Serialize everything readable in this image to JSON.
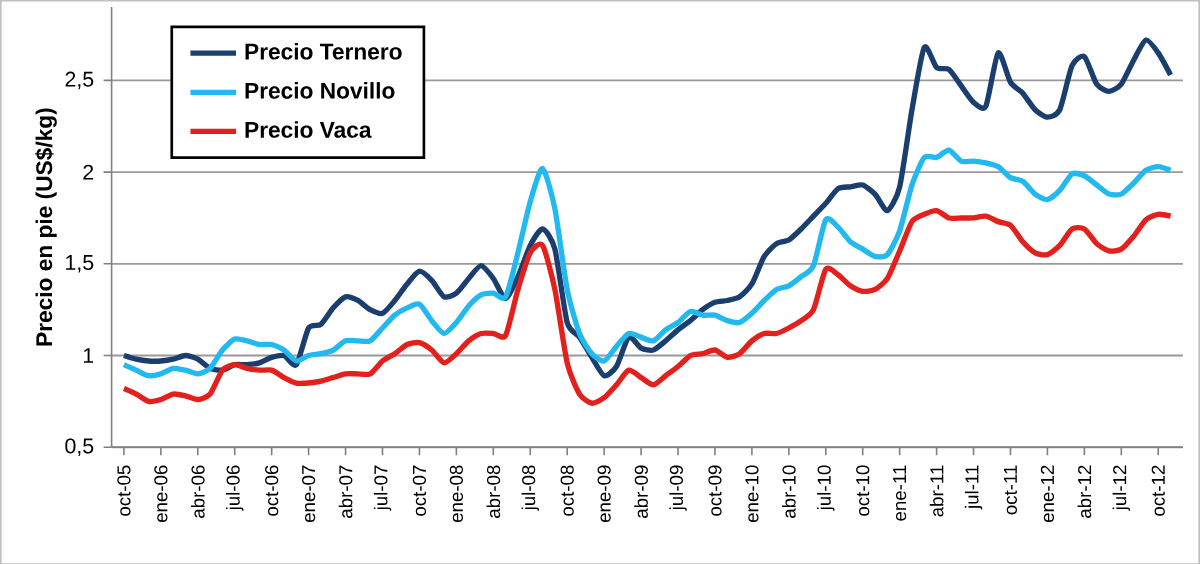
{
  "chart_data": {
    "type": "line",
    "ylabel": "Precio en pie (US$/kg)",
    "categories": [
      "oct-05",
      null,
      null,
      "ene-06",
      null,
      null,
      "abr-06",
      null,
      null,
      "jul-06",
      null,
      null,
      "oct-06",
      null,
      null,
      "ene-07",
      null,
      null,
      "abr-07",
      null,
      null,
      "jul-07",
      null,
      null,
      "oct-07",
      null,
      null,
      "ene-08",
      null,
      null,
      "abr-08",
      null,
      null,
      "jul-08",
      null,
      null,
      "oct-08",
      null,
      null,
      "ene-09",
      null,
      null,
      "abr-09",
      null,
      null,
      "jul-09",
      null,
      null,
      "oct-09",
      null,
      null,
      "ene-10",
      null,
      null,
      "abr-10",
      null,
      null,
      "jul-10",
      null,
      null,
      "oct-10",
      null,
      null,
      "ene-11",
      null,
      null,
      "abr-11",
      null,
      null,
      "jul-11",
      null,
      null,
      "oct-11",
      null,
      null,
      "ene-12",
      null,
      null,
      "abr-12",
      null,
      null,
      "jul-12",
      null,
      null,
      "oct-12",
      null
    ],
    "series": [
      {
        "name": "Precio Ternero",
        "color": "#1a3f6e",
        "values": [
          1.0,
          0.98,
          0.97,
          0.97,
          0.98,
          1.0,
          0.98,
          0.93,
          0.92,
          0.95,
          0.95,
          0.96,
          0.99,
          1.0,
          0.95,
          1.15,
          1.17,
          1.26,
          1.32,
          1.3,
          1.25,
          1.23,
          1.3,
          1.39,
          1.46,
          1.41,
          1.32,
          1.34,
          1.42,
          1.49,
          1.42,
          1.31,
          1.43,
          1.6,
          1.69,
          1.58,
          1.18,
          1.1,
          0.99,
          0.89,
          0.94,
          1.1,
          1.04,
          1.03,
          1.08,
          1.14,
          1.19,
          1.25,
          1.29,
          1.3,
          1.32,
          1.39,
          1.54,
          1.61,
          1.63,
          1.69,
          1.76,
          1.83,
          1.91,
          1.92,
          1.93,
          1.88,
          1.79,
          1.92,
          2.34,
          2.68,
          2.57,
          2.56,
          2.47,
          2.38,
          2.36,
          2.65,
          2.49,
          2.43,
          2.34,
          2.3,
          2.34,
          2.58,
          2.63,
          2.48,
          2.44,
          2.48,
          2.61,
          2.72,
          2.65,
          2.53
        ]
      },
      {
        "name": "Precio Novillo",
        "color": "#22b8f0",
        "values": [
          0.95,
          0.92,
          0.89,
          0.9,
          0.93,
          0.92,
          0.9,
          0.93,
          1.03,
          1.09,
          1.08,
          1.06,
          1.06,
          1.03,
          0.97,
          1.0,
          1.01,
          1.03,
          1.08,
          1.08,
          1.08,
          1.15,
          1.22,
          1.26,
          1.28,
          1.19,
          1.12,
          1.18,
          1.27,
          1.33,
          1.34,
          1.32,
          1.56,
          1.84,
          2.02,
          1.8,
          1.36,
          1.12,
          1.01,
          0.97,
          1.05,
          1.12,
          1.1,
          1.08,
          1.14,
          1.18,
          1.24,
          1.22,
          1.22,
          1.19,
          1.18,
          1.23,
          1.3,
          1.36,
          1.38,
          1.43,
          1.49,
          1.74,
          1.7,
          1.62,
          1.58,
          1.54,
          1.55,
          1.68,
          1.93,
          2.08,
          2.08,
          2.12,
          2.06,
          2.06,
          2.05,
          2.03,
          1.97,
          1.95,
          1.88,
          1.85,
          1.9,
          1.99,
          1.98,
          1.93,
          1.88,
          1.88,
          1.94,
          2.01,
          2.03,
          2.01
        ]
      },
      {
        "name": "Precio Vaca",
        "color": "#e3201b",
        "values": [
          0.82,
          0.79,
          0.75,
          0.76,
          0.79,
          0.78,
          0.76,
          0.79,
          0.92,
          0.95,
          0.93,
          0.92,
          0.92,
          0.88,
          0.85,
          0.85,
          0.86,
          0.88,
          0.9,
          0.9,
          0.9,
          0.97,
          1.01,
          1.06,
          1.07,
          1.03,
          0.96,
          1.01,
          1.08,
          1.12,
          1.12,
          1.11,
          1.36,
          1.56,
          1.6,
          1.36,
          0.96,
          0.79,
          0.74,
          0.77,
          0.84,
          0.92,
          0.88,
          0.84,
          0.89,
          0.94,
          1.0,
          1.01,
          1.03,
          0.99,
          1.01,
          1.08,
          1.12,
          1.12,
          1.15,
          1.19,
          1.25,
          1.47,
          1.44,
          1.38,
          1.35,
          1.36,
          1.42,
          1.57,
          1.73,
          1.77,
          1.79,
          1.75,
          1.75,
          1.75,
          1.76,
          1.73,
          1.71,
          1.62,
          1.56,
          1.55,
          1.6,
          1.69,
          1.69,
          1.61,
          1.57,
          1.58,
          1.65,
          1.74,
          1.77,
          1.76
        ]
      }
    ],
    "ylim": [
      0.5,
      2.9
    ],
    "yticks": [
      {
        "value": 0.5,
        "label": "0,5"
      },
      1,
      {
        "value": 1.5,
        "label": "1,5"
      },
      2,
      {
        "value": 2.5,
        "label": "2,5"
      }
    ],
    "grid": "y",
    "legend": "top left",
    "marker": "none",
    "line_style": "solid"
  }
}
